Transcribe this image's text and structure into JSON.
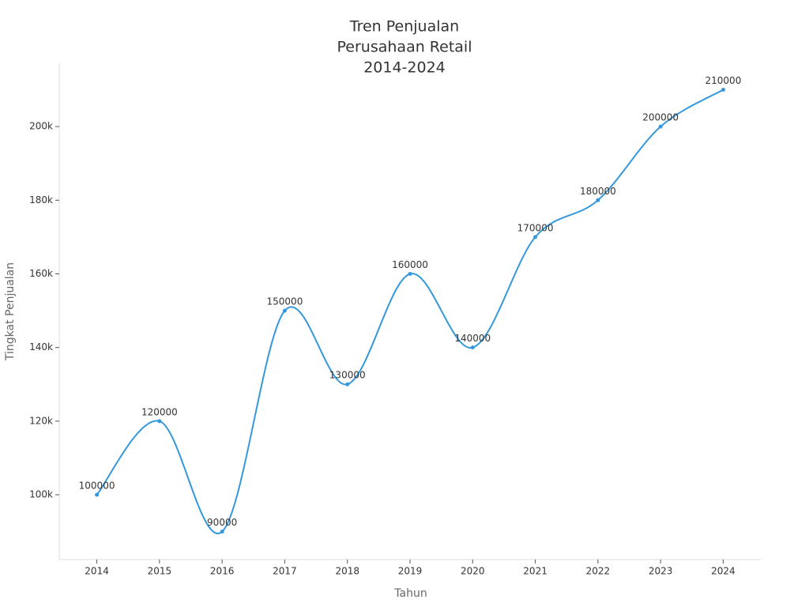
{
  "chart_data": {
    "type": "line",
    "title": [
      "Tren Penjualan",
      "Perusahaan Retail",
      "2014-2024"
    ],
    "x_label": "Tahun",
    "y_label": "Tingkat Penjualan",
    "x": [
      2014,
      2015,
      2016,
      2017,
      2018,
      2019,
      2020,
      2021,
      2022,
      2023,
      2024
    ],
    "series": [
      {
        "color": "#3498db",
        "values": [
          100000,
          120000,
          90000,
          150000,
          130000,
          160000,
          140000,
          170000,
          180000,
          200000,
          210000
        ]
      }
    ],
    "xlim": [
      2013.4,
      2024.6
    ],
    "xticks": [
      2014,
      2015,
      2016,
      2017,
      2018,
      2019,
      2020,
      2021,
      2022,
      2023,
      2024
    ],
    "ylim": [
      82400,
      217200
    ],
    "yticks": [
      {
        "value": 100000,
        "label": "100k"
      },
      {
        "value": 120000,
        "label": "120k"
      },
      {
        "value": 140000,
        "label": "140k"
      },
      {
        "value": 160000,
        "label": "160k"
      },
      {
        "value": 180000,
        "label": "180k"
      },
      {
        "value": 200000,
        "label": "200k"
      }
    ],
    "grid": false,
    "smooth": true
  }
}
